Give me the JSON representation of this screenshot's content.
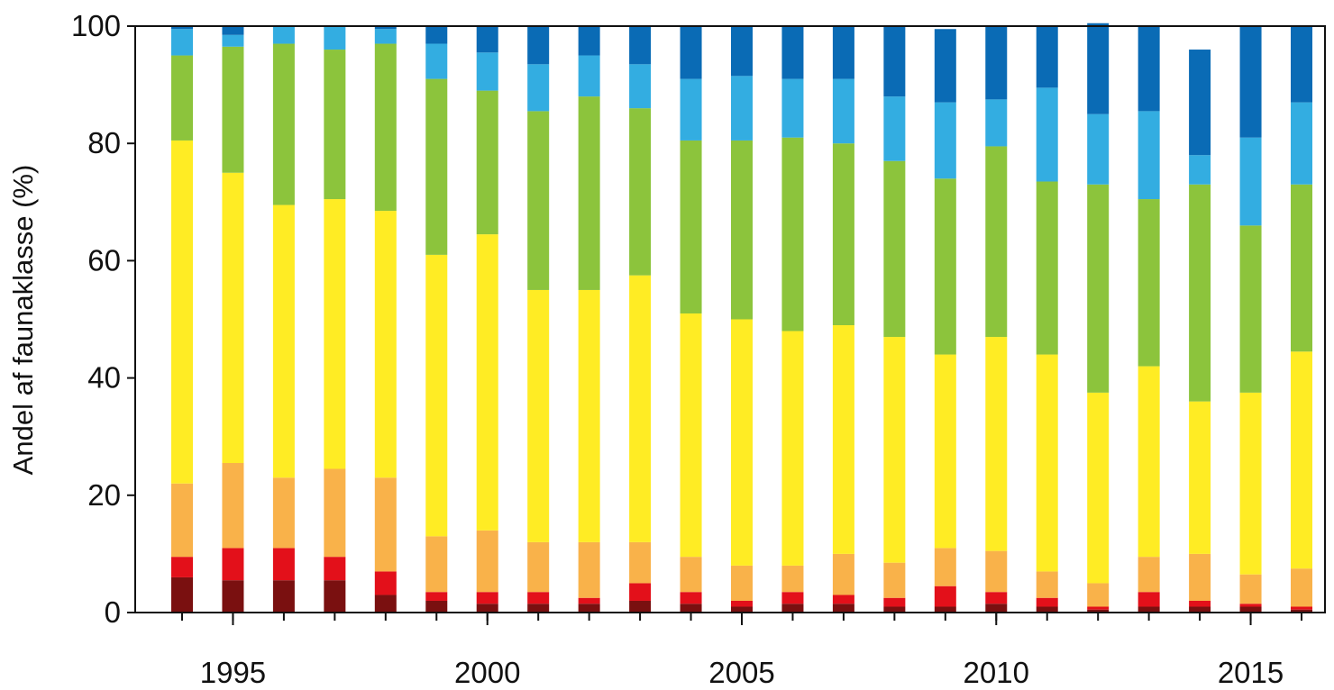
{
  "chart_data": {
    "type": "bar",
    "stacked": true,
    "title": "",
    "xlabel": "",
    "ylabel": "Andel af faunaklasse (%)",
    "ylim": [
      0,
      100
    ],
    "yticks": [
      0,
      20,
      40,
      60,
      80,
      100
    ],
    "xticks": [
      1995,
      2000,
      2005,
      2010,
      2015
    ],
    "grid": false,
    "legend": "none",
    "categories": [
      1994,
      1995,
      1996,
      1997,
      1998,
      1999,
      2000,
      2001,
      2002,
      2003,
      2004,
      2005,
      2006,
      2007,
      2008,
      2009,
      2010,
      2011,
      2012,
      2013,
      2014,
      2015,
      2016
    ],
    "series": [
      {
        "color": "#7a1010",
        "values": [
          6,
          5.5,
          5.5,
          5.5,
          3,
          2,
          1.5,
          1.5,
          1.5,
          2,
          1.5,
          1,
          1.5,
          1.5,
          1,
          1,
          1.5,
          1,
          0.5,
          1,
          1,
          1,
          0.5
        ]
      },
      {
        "color": "#e3101a",
        "values": [
          3.5,
          5.5,
          5.5,
          4,
          4,
          1.5,
          2,
          2,
          1,
          3,
          2,
          1,
          2,
          1.5,
          1.5,
          3.5,
          2,
          1.5,
          0.5,
          2.5,
          1,
          0.5,
          0.5
        ]
      },
      {
        "color": "#f9b24a",
        "values": [
          12.5,
          14.5,
          12,
          15,
          16,
          9.5,
          10.5,
          8.5,
          9.5,
          7,
          6,
          6,
          4.5,
          7,
          6,
          6.5,
          7,
          4.5,
          4,
          6,
          8,
          5,
          6.5
        ]
      },
      {
        "color": "#ffec24",
        "values": [
          58.5,
          49.5,
          46.5,
          46,
          45.5,
          48,
          50.5,
          43,
          43,
          45.5,
          41.5,
          42,
          40,
          39,
          38.5,
          33,
          36.5,
          37,
          32.5,
          32.5,
          26,
          31,
          37
        ]
      },
      {
        "color": "#8cc43c",
        "values": [
          14.5,
          21.5,
          27.5,
          25.5,
          28.5,
          30,
          24.5,
          30.5,
          33,
          28.5,
          29.5,
          30.5,
          33,
          31,
          30,
          30,
          32.5,
          29.5,
          35.5,
          28.5,
          37,
          28.5,
          28.5
        ]
      },
      {
        "color": "#33ade1",
        "values": [
          4.5,
          2,
          3,
          4,
          2.5,
          6,
          6.5,
          8,
          7,
          7.5,
          10.5,
          11,
          10,
          11,
          11,
          13,
          8,
          16,
          12,
          15,
          5,
          15,
          14
        ]
      },
      {
        "color": "#0a6bb5",
        "values": [
          0.5,
          1.5,
          0,
          0,
          0.5,
          3,
          4.5,
          6.5,
          5,
          6.5,
          9,
          8.5,
          9,
          9,
          12,
          12.5,
          12.5,
          10.5,
          15.5,
          14.5,
          18,
          19,
          13
        ]
      }
    ]
  }
}
